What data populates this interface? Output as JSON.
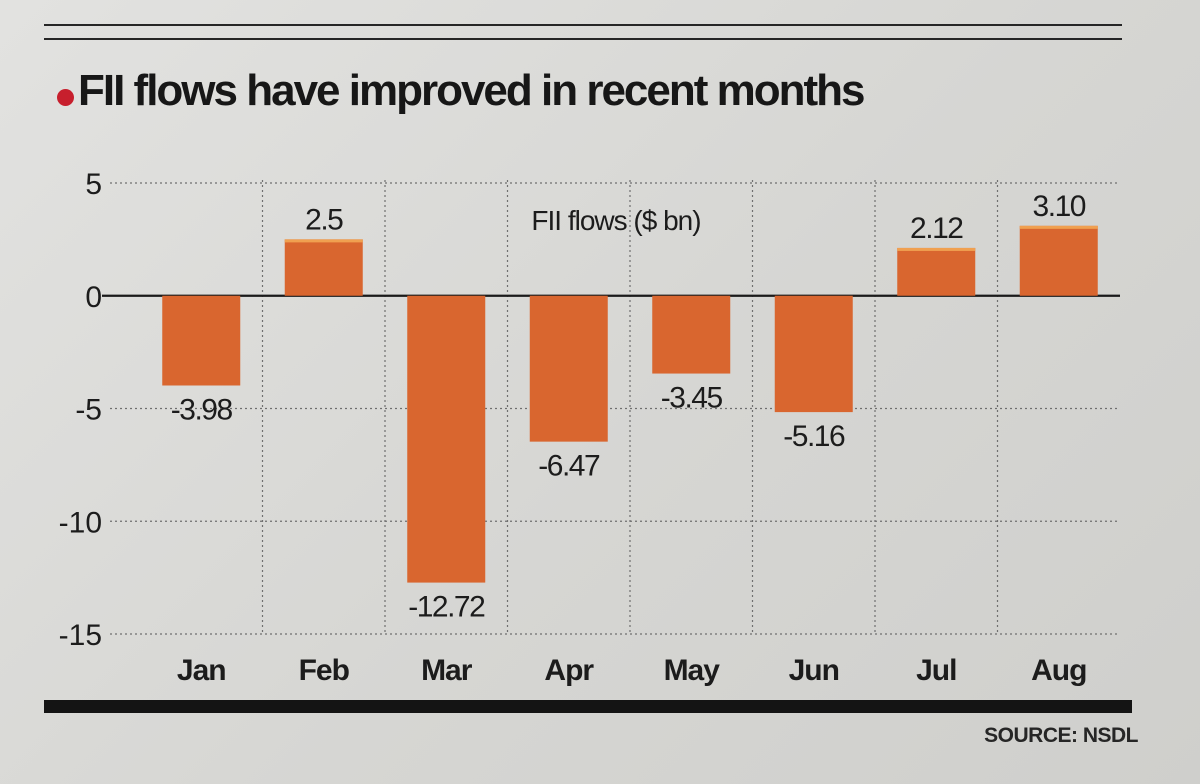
{
  "header": {
    "title": "FII flows have improved in recent months"
  },
  "footer": {
    "source": "SOURCE: NSDL"
  },
  "colors": {
    "bar": "#d9662f",
    "bar_top": "#f0a050",
    "accent_dot": "#c71f2d",
    "text": "#1c1c1c"
  },
  "chart_data": {
    "type": "bar",
    "title": "FII flows have improved in recent months",
    "series_label": "FII flows ($ bn)",
    "categories": [
      "Jan",
      "Feb",
      "Mar",
      "Apr",
      "May",
      "Jun",
      "Jul",
      "Aug"
    ],
    "values": [
      -3.98,
      2.5,
      -12.72,
      -6.47,
      -3.45,
      -5.16,
      2.12,
      3.1
    ],
    "value_labels": [
      "-3.98",
      "2.5",
      "-12.72",
      "-6.47",
      "-3.45",
      "-5.16",
      "2.12",
      "3.10"
    ],
    "ylim": [
      -15,
      5
    ],
    "yticks": [
      5,
      0,
      -5,
      -10,
      -15
    ],
    "grid": true,
    "xlabel": "",
    "ylabel": ""
  }
}
